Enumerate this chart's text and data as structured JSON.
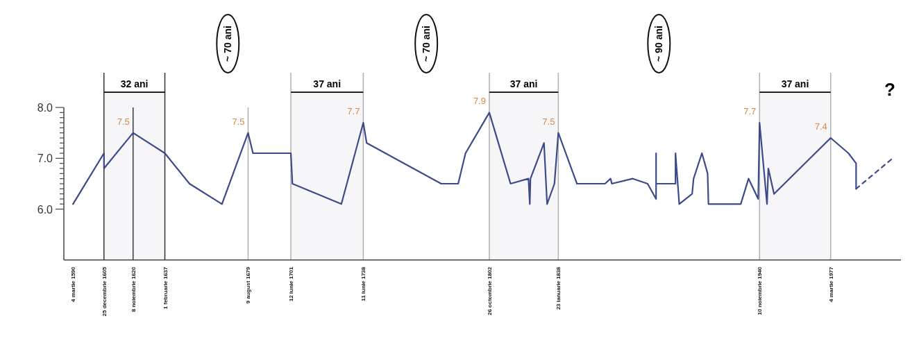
{
  "chart_data": {
    "type": "line",
    "xlim": [
      "1585-07",
      "2013-02"
    ],
    "ylim": [
      5,
      8
    ],
    "xticks": [
      {
        "value": "1590-03-04",
        "label": "4 martie 1590"
      },
      {
        "value": "1605-12-25",
        "label": "25 decembrie 1605"
      },
      {
        "value": "1620-11-08",
        "label": "8 noiembrie 1620"
      },
      {
        "value": "1637-02-01",
        "label": "1 februarie 1637"
      },
      {
        "value": "1679-08-09",
        "label": "9 august 1679"
      },
      {
        "value": "1701-06-12",
        "label": "12 iunie 1701"
      },
      {
        "value": "1738-06-11",
        "label": "11 iunie 1738"
      },
      {
        "value": "1802-10-26",
        "label": "26 octombrie 1802"
      },
      {
        "value": "1838-01-23",
        "label": "23 ianuarie 1838"
      },
      {
        "value": "1940-11-10",
        "label": "10 noiembrie 1940"
      },
      {
        "value": "1977-03-04",
        "label": "4 martie 1977"
      }
    ],
    "yticks": [
      {
        "value": 6,
        "label": "6.0"
      },
      {
        "value": 6.1,
        "label": null
      },
      {
        "value": 6.2,
        "label": null
      },
      {
        "value": 6.3,
        "label": null
      },
      {
        "value": 6.4,
        "label": null
      },
      {
        "value": 6.5,
        "label": null
      },
      {
        "value": 6.6,
        "label": null
      },
      {
        "value": 6.7,
        "label": null
      },
      {
        "value": 6.8,
        "label": null
      },
      {
        "value": 6.9,
        "label": null
      },
      {
        "value": 7,
        "label": "7.0"
      },
      {
        "value": 7.1,
        "label": null
      },
      {
        "value": 7.2,
        "label": null
      },
      {
        "value": 7.3,
        "label": null
      },
      {
        "value": 7.4,
        "label": null
      },
      {
        "value": 7.5,
        "label": null
      },
      {
        "value": 7.6,
        "label": null
      },
      {
        "value": 7.7,
        "label": null
      },
      {
        "value": 7.8,
        "label": null
      },
      {
        "value": 7.9,
        "label": null
      },
      {
        "value": 8,
        "label": "8.0"
      }
    ],
    "series": [
      {
        "color": "#3d4a8a",
        "line_style": "solid",
        "x": [
          "1590-03-04",
          "1605-12-25",
          "1605-12-25",
          "1620-11-08",
          "1637-02-01",
          "1649-09",
          "1666-04",
          "1679-08-09",
          "1682-02",
          "1701-06-12",
          "1702-04",
          "1727-04",
          "1738-06-11",
          "1740-03",
          "1778-04",
          "1786-12",
          "1790-09",
          "1802-10-26",
          "1813-09",
          "1822-11",
          "1823-07",
          "1823-11",
          "1830-10",
          "1832-05",
          "1836-02",
          "1838-01-23",
          "1847-08",
          "1861-12",
          "1864-10",
          "1865-06",
          "1876-02",
          "1883-09",
          "1888-01",
          "1888-01",
          "1888-01",
          "1897-12",
          "1897-12",
          "1899-11",
          "1906-06",
          "1907-03",
          "1911-06",
          "1914-05",
          "1914-10",
          "1931-04",
          "1935-04",
          "1940-03",
          "1940-11-10",
          "1944-09",
          "1945-05",
          "1948-04",
          "1977-03-04",
          "1986-04",
          "1990-03",
          "1990-03"
        ],
        "values": [
          6.1,
          7.1,
          6.8,
          7.5,
          7.1,
          6.5,
          6.1,
          7.5,
          7.1,
          7.1,
          6.5,
          6.1,
          7.7,
          7.3,
          6.5,
          6.5,
          7.1,
          7.9,
          6.5,
          6.6,
          6.1,
          6.6,
          7.3,
          6.1,
          6.5,
          7.5,
          6.5,
          6.5,
          6.6,
          6.5,
          6.6,
          6.5,
          6.2,
          7.1,
          6.5,
          6.5,
          7.1,
          6.1,
          6.3,
          6.6,
          7.1,
          6.7,
          6.1,
          6.1,
          6.6,
          6.2,
          7.7,
          6.1,
          6.8,
          6.3,
          7.4,
          7.1,
          6.9,
          6.4
        ],
        "value_labels": [
          null,
          null,
          null,
          "7.5",
          null,
          null,
          null,
          "7.5",
          null,
          null,
          null,
          null,
          "7.7",
          null,
          null,
          null,
          null,
          "7.9",
          null,
          null,
          null,
          null,
          null,
          null,
          null,
          "7.5",
          null,
          null,
          null,
          null,
          null,
          null,
          null,
          null,
          null,
          null,
          null,
          null,
          null,
          null,
          null,
          null,
          null,
          null,
          null,
          null,
          "7.7",
          null,
          null,
          null,
          "7.4",
          null,
          null,
          null
        ]
      },
      {
        "color": "#3d4a8a",
        "line_style": "dashed",
        "x": [
          "1990-03",
          "2008-11"
        ],
        "values": [
          6.4,
          7.0
        ]
      }
    ],
    "ref_lines": [
      {
        "axis": "x",
        "value": "1605-12-25",
        "color": "#333333"
      },
      {
        "axis": "x",
        "value": "1620-11-08",
        "color": "#333333"
      },
      {
        "axis": "x",
        "value": "1637-02-01",
        "color": "#333333"
      },
      {
        "axis": "x",
        "value": "1679-08-09",
        "color": "#b0b0b0"
      },
      {
        "axis": "x",
        "value": "1701-06-12",
        "color": "#b0b0b0"
      },
      {
        "axis": "x",
        "value": "1738-06-11",
        "color": "#b0b0b0"
      },
      {
        "axis": "x",
        "value": "1802-10-26",
        "color": "#b0b0b0"
      },
      {
        "axis": "x",
        "value": "1838-01-23",
        "color": "#b0b0b0"
      },
      {
        "axis": "x",
        "value": "1940-11-10",
        "color": "#b0b0b0"
      },
      {
        "axis": "x",
        "value": "1977-03-04",
        "color": "#b0b0b0"
      }
    ],
    "bands": [
      {
        "axis": "x",
        "from": "1605-12-25",
        "to": "1637-02-01",
        "label": "32 ani"
      },
      {
        "axis": "x",
        "from": "1701-06-12",
        "to": "1738-06-11",
        "label": "37 ani"
      },
      {
        "axis": "x",
        "from": "1802-10-26",
        "to": "1838-01-23",
        "label": "37 ani"
      },
      {
        "axis": "x",
        "from": "1940-11-10",
        "to": "1977-03-04",
        "label": "37 ani"
      }
    ],
    "annotations": [
      "~ 70 ani",
      "~ 70 ani",
      "~ 90 ani",
      "?"
    ]
  }
}
